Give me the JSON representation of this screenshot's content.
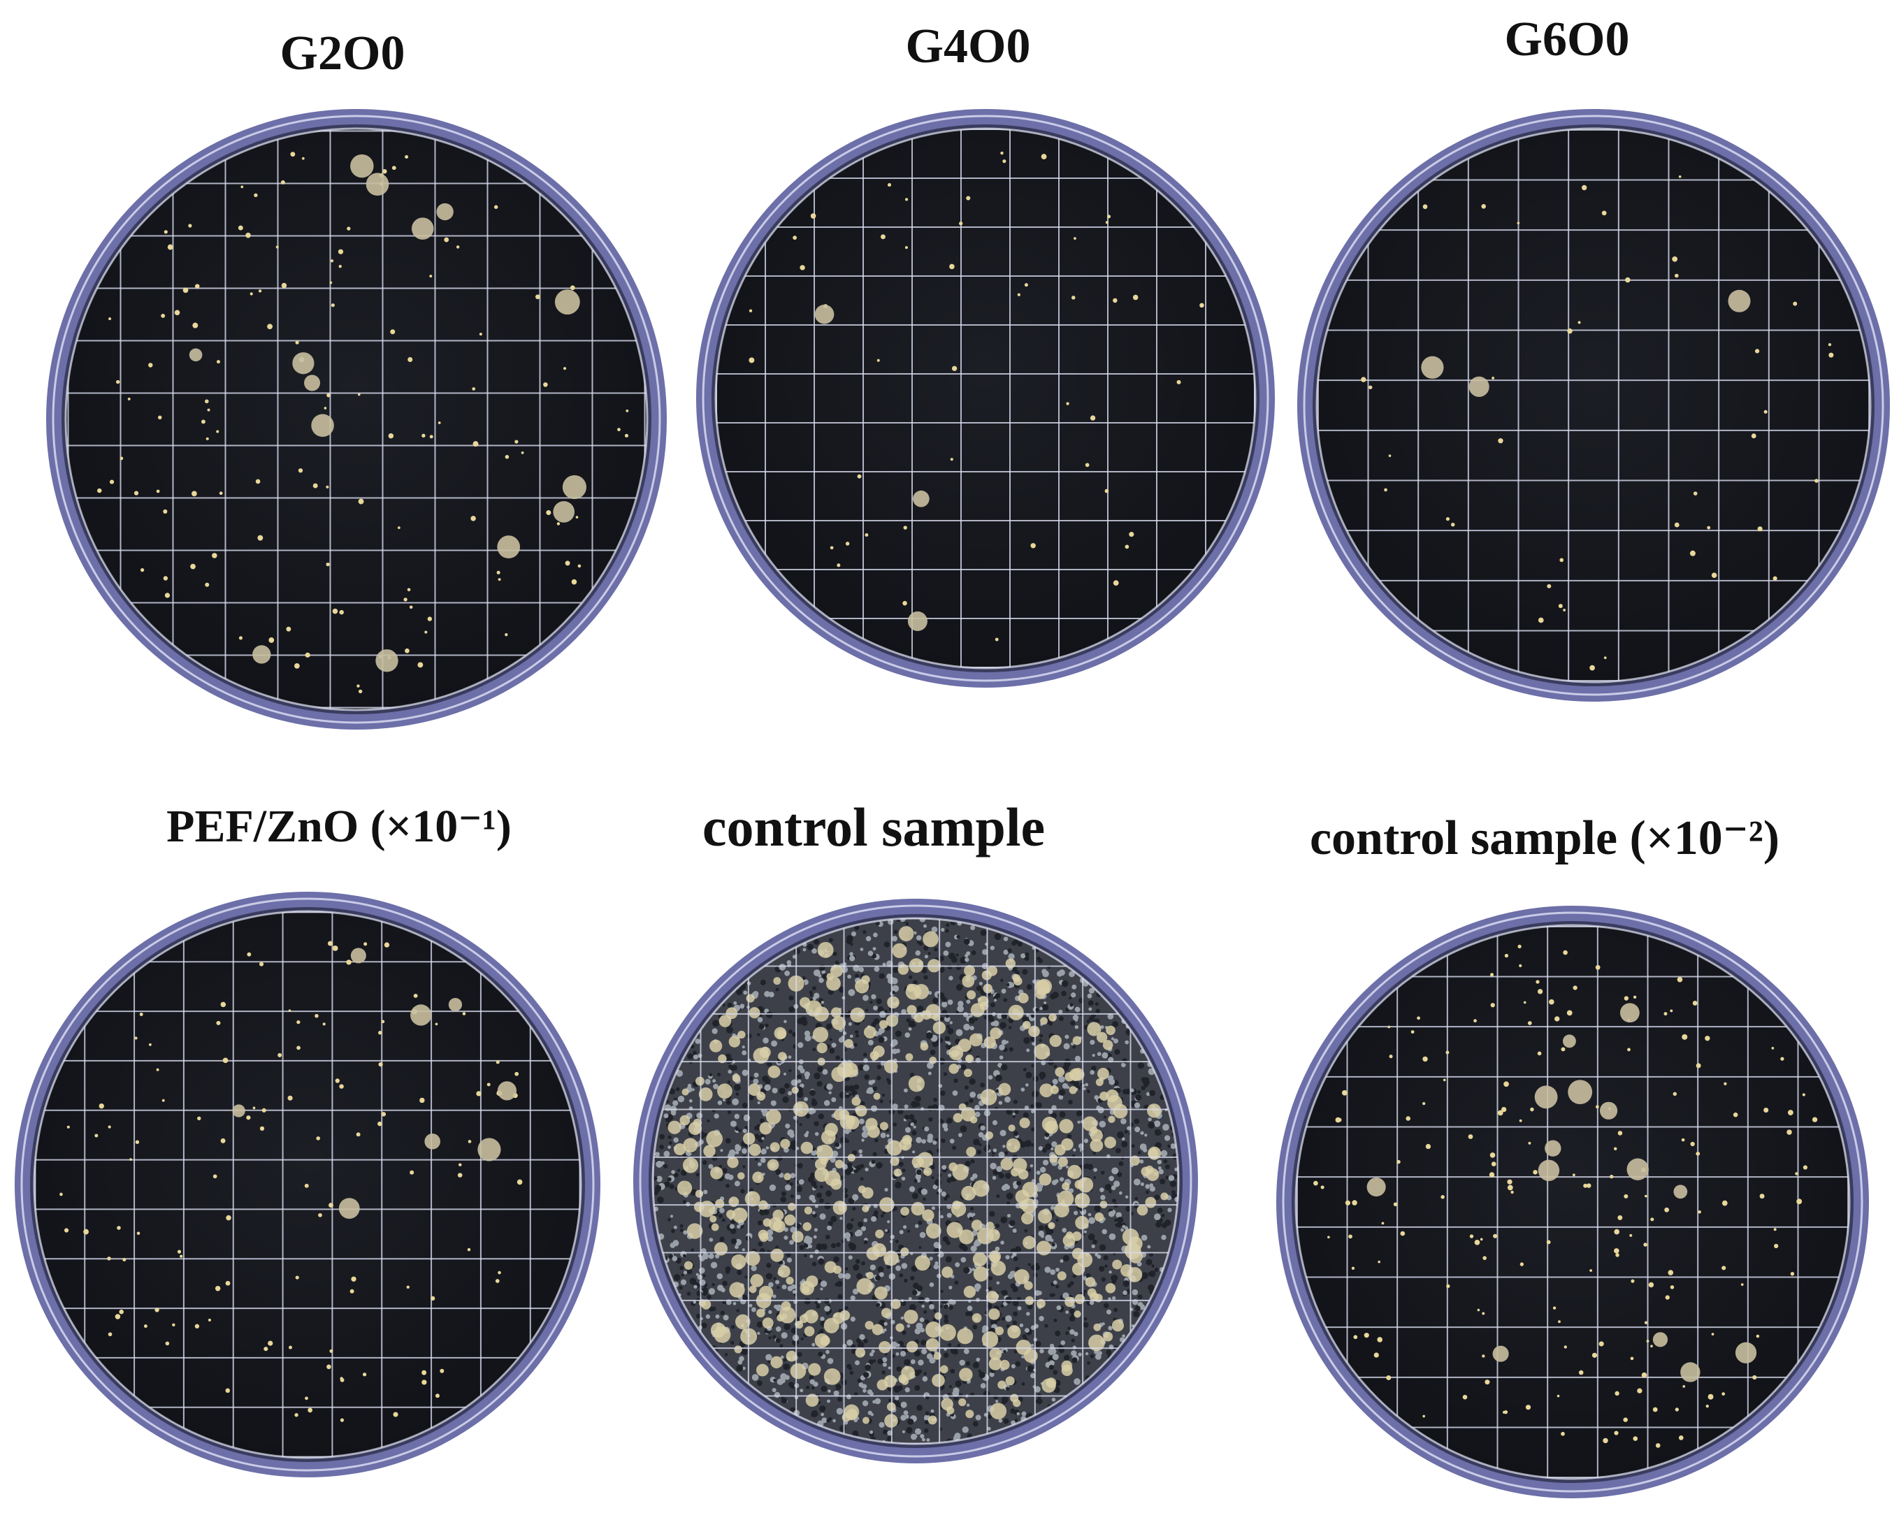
{
  "figure": {
    "panels": [
      {
        "label": "G2O0"
      },
      {
        "label": "G4O0"
      },
      {
        "label": "G6O0"
      },
      {
        "label": "PEF/ZnO (×10⁻¹)"
      },
      {
        "label": "control sample"
      },
      {
        "label": "control sample (×10⁻²)"
      }
    ]
  },
  "colors": {
    "agar": "#111318",
    "rim": "#6c6fa8",
    "grid": "#d9dcef",
    "colony": "#e9d79a"
  }
}
